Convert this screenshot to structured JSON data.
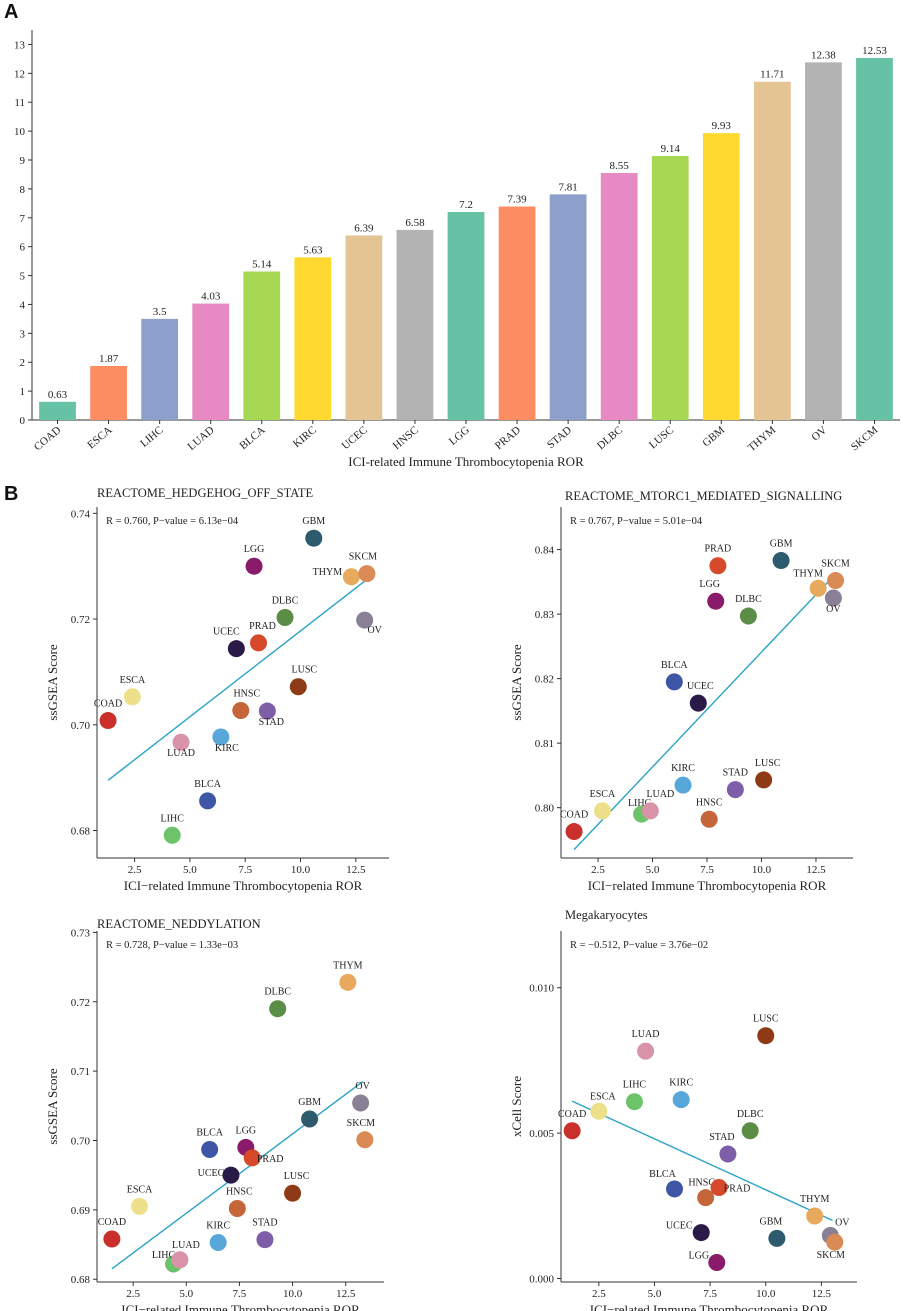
{
  "panels": {
    "a_label": "A",
    "b_label": "B"
  },
  "bar_chart": {
    "type": "bar",
    "xlabel": "ICI-related Immune Thrombocytopenia ROR",
    "ylim": [
      0,
      13.5
    ],
    "yticks": [
      0,
      1,
      2,
      3,
      4,
      5,
      6,
      7,
      8,
      9,
      10,
      11,
      12,
      13
    ],
    "categories": [
      "COAD",
      "ESCA",
      "LIHC",
      "LUAD",
      "BLCA",
      "KIRC",
      "UCEC",
      "HNSC",
      "LGG",
      "PRAD",
      "STAD",
      "DLBC",
      "LUSC",
      "GBM",
      "THYM",
      "OV",
      "SKCM"
    ],
    "values": [
      0.63,
      1.87,
      3.5,
      4.03,
      5.14,
      5.63,
      6.39,
      6.58,
      7.2,
      7.39,
      7.81,
      8.55,
      9.14,
      9.93,
      11.71,
      12.38,
      12.53
    ],
    "value_labels": [
      "0.63",
      "1.87",
      "3.5",
      "4.03",
      "5.14",
      "5.63",
      "6.39",
      "6.58",
      "7.2",
      "7.39",
      "7.81",
      "8.55",
      "9.14",
      "9.93",
      "11.71",
      "12.38",
      "12.53"
    ],
    "colors": [
      "#66c2a5",
      "#fc8d62",
      "#8da0cb",
      "#e78ac3",
      "#a6d854",
      "#ffd92f",
      "#e5c494",
      "#b3b3b3",
      "#66c2a5",
      "#fc8d62",
      "#8da0cb",
      "#e78ac3",
      "#a6d854",
      "#ffd92f",
      "#e5c494",
      "#b3b3b3",
      "#66c2a5"
    ]
  },
  "chart_data": [
    {
      "type": "scatter",
      "title": "REACTOME_HEDGEHOG_OFF_STATE",
      "stat": "R = 0.760, P−value = 6.13e−04",
      "xlabel": "ICI−related Immune Thrombocytopenia ROR",
      "ylabel": "ssGSEA Score",
      "xlim": [
        0.8,
        14.0
      ],
      "ylim": [
        0.6748,
        0.7412
      ],
      "xticks": [
        2.5,
        5.0,
        7.5,
        10.0,
        12.5
      ],
      "xtick_labels": [
        "2.5",
        "5.0",
        "7.5",
        "10.0",
        "12.5"
      ],
      "yticks": [
        0.68,
        0.7,
        0.72,
        0.74
      ],
      "ytick_labels": [
        "0.68",
        "0.70",
        "0.72",
        "0.74"
      ],
      "fit": [
        [
          1.3,
          0.6895
        ],
        [
          13.0,
          0.7275
        ]
      ],
      "points": [
        {
          "name": "COAD",
          "x": 1.3,
          "y": 0.7008,
          "color": "#c9302c",
          "lx": 0,
          "ly": -14
        },
        {
          "name": "ESCA",
          "x": 2.4,
          "y": 0.7053,
          "color": "#eee08a",
          "lx": 0,
          "ly": -14
        },
        {
          "name": "LIHC",
          "x": 4.2,
          "y": 0.6791,
          "color": "#6cc36a",
          "lx": 0,
          "ly": -14
        },
        {
          "name": "LUAD",
          "x": 4.6,
          "y": 0.6967,
          "color": "#d893a8",
          "lx": 0,
          "ly": 14
        },
        {
          "name": "BLCA",
          "x": 5.8,
          "y": 0.6856,
          "color": "#3f56a6",
          "lx": 0,
          "ly": -14
        },
        {
          "name": "KIRC",
          "x": 6.4,
          "y": 0.6977,
          "color": "#58a7db",
          "lx": 6,
          "ly": 14
        },
        {
          "name": "UCEC",
          "x": 7.1,
          "y": 0.7144,
          "color": "#2a1a47",
          "lx": -10,
          "ly": -14
        },
        {
          "name": "HNSC",
          "x": 7.3,
          "y": 0.7027,
          "color": "#c5653a",
          "lx": 6,
          "ly": -14
        },
        {
          "name": "LGG",
          "x": 7.9,
          "y": 0.73,
          "color": "#8a1a6a",
          "lx": 0,
          "ly": -14
        },
        {
          "name": "PRAD",
          "x": 8.1,
          "y": 0.7155,
          "color": "#d6492a",
          "lx": 4,
          "ly": -14
        },
        {
          "name": "STAD",
          "x": 8.5,
          "y": 0.7026,
          "color": "#7e5ea8",
          "lx": 4,
          "ly": 14
        },
        {
          "name": "DLBC",
          "x": 9.3,
          "y": 0.7203,
          "color": "#5c8d46",
          "lx": 0,
          "ly": -14
        },
        {
          "name": "LUSC",
          "x": 9.9,
          "y": 0.7072,
          "color": "#8e3a16",
          "lx": 6,
          "ly": -14
        },
        {
          "name": "GBM",
          "x": 10.6,
          "y": 0.7353,
          "color": "#2e5a6d",
          "lx": 0,
          "ly": -14
        },
        {
          "name": "THYM",
          "x": 12.3,
          "y": 0.728,
          "color": "#e7a95c",
          "lx": -24,
          "ly": -2
        },
        {
          "name": "OV",
          "x": 12.9,
          "y": 0.7198,
          "color": "#8a8095",
          "lx": 10,
          "ly": 13
        },
        {
          "name": "SKCM",
          "x": 13.0,
          "y": 0.7286,
          "color": "#d98a55",
          "lx": -4,
          "ly": -14
        }
      ]
    },
    {
      "type": "scatter",
      "title": "REACTOME_MTORC1_MEDIATED_SIGNALLING",
      "stat": "R = 0.767, P−value = 5.01e−04",
      "xlabel": "ICI−related Immune Thrombocytopenia ROR",
      "ylabel": "ssGSEA Score",
      "xlim": [
        0.8,
        14.2
      ],
      "ylim": [
        0.7922,
        0.8466
      ],
      "xticks": [
        2.5,
        5.0,
        7.5,
        10.0,
        12.5
      ],
      "xtick_labels": [
        "2.5",
        "5.0",
        "7.5",
        "10.0",
        "12.5"
      ],
      "yticks": [
        0.8,
        0.81,
        0.82,
        0.83,
        0.84
      ],
      "ytick_labels": [
        "0.80",
        "0.81",
        "0.82",
        "0.83",
        "0.84"
      ],
      "fit": [
        [
          1.4,
          0.7935
        ],
        [
          13.2,
          0.8355
        ]
      ],
      "points": [
        {
          "name": "COAD",
          "x": 1.4,
          "y": 0.7963,
          "color": "#c9302c",
          "lx": 0,
          "ly": -14
        },
        {
          "name": "ESCA",
          "x": 2.7,
          "y": 0.7995,
          "color": "#eee08a",
          "lx": 0,
          "ly": -14
        },
        {
          "name": "LIHC",
          "x": 4.5,
          "y": 0.799,
          "color": "#6cc36a",
          "lx": -2,
          "ly": -8
        },
        {
          "name": "LUAD",
          "x": 4.9,
          "y": 0.7995,
          "color": "#d893a8",
          "lx": 10,
          "ly": -14
        },
        {
          "name": "BLCA",
          "x": 6.0,
          "y": 0.8195,
          "color": "#3f56a6",
          "lx": 0,
          "ly": -14
        },
        {
          "name": "KIRC",
          "x": 6.4,
          "y": 0.8035,
          "color": "#58a7db",
          "lx": 0,
          "ly": -14
        },
        {
          "name": "UCEC",
          "x": 7.1,
          "y": 0.8162,
          "color": "#2a1a47",
          "lx": 2,
          "ly": -14
        },
        {
          "name": "HNSC",
          "x": 7.6,
          "y": 0.7982,
          "color": "#c5653a",
          "lx": 0,
          "ly": -14
        },
        {
          "name": "PRAD",
          "x": 8.0,
          "y": 0.8375,
          "color": "#d6492a",
          "lx": 0,
          "ly": -14
        },
        {
          "name": "LGG",
          "x": 7.9,
          "y": 0.832,
          "color": "#8a1a6a",
          "lx": -6,
          "ly": -14
        },
        {
          "name": "STAD",
          "x": 8.8,
          "y": 0.8028,
          "color": "#7e5ea8",
          "lx": 0,
          "ly": -14
        },
        {
          "name": "DLBC",
          "x": 9.4,
          "y": 0.8297,
          "color": "#5c8d46",
          "lx": 0,
          "ly": -14
        },
        {
          "name": "LUSC",
          "x": 10.1,
          "y": 0.8043,
          "color": "#8e3a16",
          "lx": 4,
          "ly": -14
        },
        {
          "name": "GBM",
          "x": 10.9,
          "y": 0.8383,
          "color": "#2e5a6d",
          "lx": 0,
          "ly": -14
        },
        {
          "name": "THYM",
          "x": 12.6,
          "y": 0.834,
          "color": "#e7a95c",
          "lx": -10,
          "ly": -12
        },
        {
          "name": "SKCM",
          "x": 13.4,
          "y": 0.8352,
          "color": "#d98a55",
          "lx": 0,
          "ly": -14
        },
        {
          "name": "OV",
          "x": 13.3,
          "y": 0.8325,
          "color": "#8a8095",
          "lx": 0,
          "ly": 14
        }
      ]
    },
    {
      "type": "scatter",
      "title": "REACTOME_NEDDYLATION",
      "stat": "R = 0.728, P−value = 1.33e−03",
      "xlabel": "ICI−related Immune Thrombocytopenia ROR",
      "ylabel": "ssGSEA Score",
      "xlim": [
        0.8,
        14.3
      ],
      "ylim": [
        0.6796,
        0.7302
      ],
      "xticks": [
        2.5,
        5.0,
        7.5,
        10.0,
        12.5
      ],
      "xtick_labels": [
        "2.5",
        "5.0",
        "7.5",
        "10.0",
        "12.5"
      ],
      "yticks": [
        0.68,
        0.69,
        0.7,
        0.71,
        0.72,
        0.73
      ],
      "ytick_labels": [
        "0.68",
        "0.69",
        "0.70",
        "0.71",
        "0.72",
        "0.73"
      ],
      "fit": [
        [
          1.5,
          0.6815
        ],
        [
          13.3,
          0.7085
        ]
      ],
      "points": [
        {
          "name": "COAD",
          "x": 1.5,
          "y": 0.6858,
          "color": "#c9302c",
          "lx": 0,
          "ly": -14
        },
        {
          "name": "ESCA",
          "x": 2.8,
          "y": 0.6905,
          "color": "#eee08a",
          "lx": 0,
          "ly": -14
        },
        {
          "name": "LIHC",
          "x": 4.4,
          "y": 0.6822,
          "color": "#6cc36a",
          "lx": -10,
          "ly": -6
        },
        {
          "name": "LUAD",
          "x": 4.7,
          "y": 0.6828,
          "color": "#d893a8",
          "lx": 6,
          "ly": -12
        },
        {
          "name": "KIRC",
          "x": 6.5,
          "y": 0.6853,
          "color": "#58a7db",
          "lx": 0,
          "ly": -14
        },
        {
          "name": "BLCA",
          "x": 6.1,
          "y": 0.6987,
          "color": "#3f56a6",
          "lx": 0,
          "ly": -14
        },
        {
          "name": "UCEC",
          "x": 7.1,
          "y": 0.695,
          "color": "#2a1a47",
          "lx": -20,
          "ly": 1
        },
        {
          "name": "HNSC",
          "x": 7.4,
          "y": 0.6902,
          "color": "#c5653a",
          "lx": 2,
          "ly": -14
        },
        {
          "name": "LGG",
          "x": 7.8,
          "y": 0.699,
          "color": "#8a1a6a",
          "lx": 0,
          "ly": -14
        },
        {
          "name": "PRAD",
          "x": 8.1,
          "y": 0.6975,
          "color": "#d6492a",
          "lx": 18,
          "ly": 4
        },
        {
          "name": "STAD",
          "x": 8.7,
          "y": 0.6857,
          "color": "#7e5ea8",
          "lx": 0,
          "ly": -14
        },
        {
          "name": "DLBC",
          "x": 9.3,
          "y": 0.719,
          "color": "#5c8d46",
          "lx": 0,
          "ly": -14
        },
        {
          "name": "LUSC",
          "x": 10.0,
          "y": 0.6924,
          "color": "#8e3a16",
          "lx": 4,
          "ly": -14
        },
        {
          "name": "GBM",
          "x": 10.8,
          "y": 0.7031,
          "color": "#2e5a6d",
          "lx": 0,
          "ly": -14
        },
        {
          "name": "THYM",
          "x": 12.6,
          "y": 0.7228,
          "color": "#e7a95c",
          "lx": 0,
          "ly": -14
        },
        {
          "name": "OV",
          "x": 13.2,
          "y": 0.7054,
          "color": "#8a8095",
          "lx": 2,
          "ly": -14
        },
        {
          "name": "SKCM",
          "x": 13.4,
          "y": 0.7001,
          "color": "#d98a55",
          "lx": -4,
          "ly": -14
        }
      ]
    },
    {
      "type": "scatter",
      "title": "Megakaryocytes",
      "stat": "R = −0.512, P−value = 3.76e−02",
      "xlabel": "ICI−related Immune Thrombocytopenia ROR",
      "ylabel": "xCell Score",
      "xlim": [
        0.8,
        14.1
      ],
      "ylim": [
        -0.00012,
        0.01195
      ],
      "xticks": [
        2.5,
        5.0,
        7.5,
        10.0,
        12.5
      ],
      "xtick_labels": [
        "2.5",
        "5.0",
        "7.5",
        "10.0",
        "12.5"
      ],
      "yticks": [
        0.0,
        0.005,
        0.01
      ],
      "ytick_labels": [
        "0.000",
        "0.005",
        "0.010"
      ],
      "fit": [
        [
          1.3,
          0.0061
        ],
        [
          13.0,
          0.002
        ]
      ],
      "points": [
        {
          "name": "COAD",
          "x": 1.3,
          "y": 0.00508,
          "color": "#c9302c",
          "lx": 0,
          "ly": -14
        },
        {
          "name": "ESCA",
          "x": 2.5,
          "y": 0.00575,
          "color": "#eee08a",
          "lx": 4,
          "ly": -12
        },
        {
          "name": "LIHC",
          "x": 4.1,
          "y": 0.00608,
          "color": "#6cc36a",
          "lx": 0,
          "ly": -14
        },
        {
          "name": "LUAD",
          "x": 4.6,
          "y": 0.00782,
          "color": "#d893a8",
          "lx": 0,
          "ly": -14
        },
        {
          "name": "KIRC",
          "x": 6.2,
          "y": 0.00615,
          "color": "#58a7db",
          "lx": 0,
          "ly": -14
        },
        {
          "name": "BLCA",
          "x": 5.9,
          "y": 0.00308,
          "color": "#3f56a6",
          "lx": -12,
          "ly": -12
        },
        {
          "name": "HNSC",
          "x": 7.3,
          "y": 0.00278,
          "color": "#c5653a",
          "lx": -4,
          "ly": -12
        },
        {
          "name": "PRAD",
          "x": 7.9,
          "y": 0.00313,
          "color": "#d6492a",
          "lx": 18,
          "ly": 4
        },
        {
          "name": "STAD",
          "x": 8.3,
          "y": 0.00428,
          "color": "#7e5ea8",
          "lx": -6,
          "ly": -14
        },
        {
          "name": "DLBC",
          "x": 9.3,
          "y": 0.00508,
          "color": "#5c8d46",
          "lx": 0,
          "ly": -14
        },
        {
          "name": "UCEC",
          "x": 7.1,
          "y": 0.00158,
          "color": "#2a1a47",
          "lx": -22,
          "ly": -4
        },
        {
          "name": "LGG",
          "x": 7.8,
          "y": 0.00055,
          "color": "#8a1a6a",
          "lx": -18,
          "ly": -4
        },
        {
          "name": "LUSC",
          "x": 10.0,
          "y": 0.00835,
          "color": "#8e3a16",
          "lx": 0,
          "ly": -14
        },
        {
          "name": "GBM",
          "x": 10.5,
          "y": 0.00138,
          "color": "#2e5a6d",
          "lx": -6,
          "ly": -14
        },
        {
          "name": "THYM",
          "x": 12.2,
          "y": 0.00215,
          "color": "#e7a95c",
          "lx": 0,
          "ly": -14
        },
        {
          "name": "OV",
          "x": 12.9,
          "y": 0.00148,
          "color": "#8a8095",
          "lx": 12,
          "ly": -10
        },
        {
          "name": "SKCM",
          "x": 13.1,
          "y": 0.00125,
          "color": "#d98a55",
          "lx": -4,
          "ly": 16
        }
      ]
    }
  ]
}
